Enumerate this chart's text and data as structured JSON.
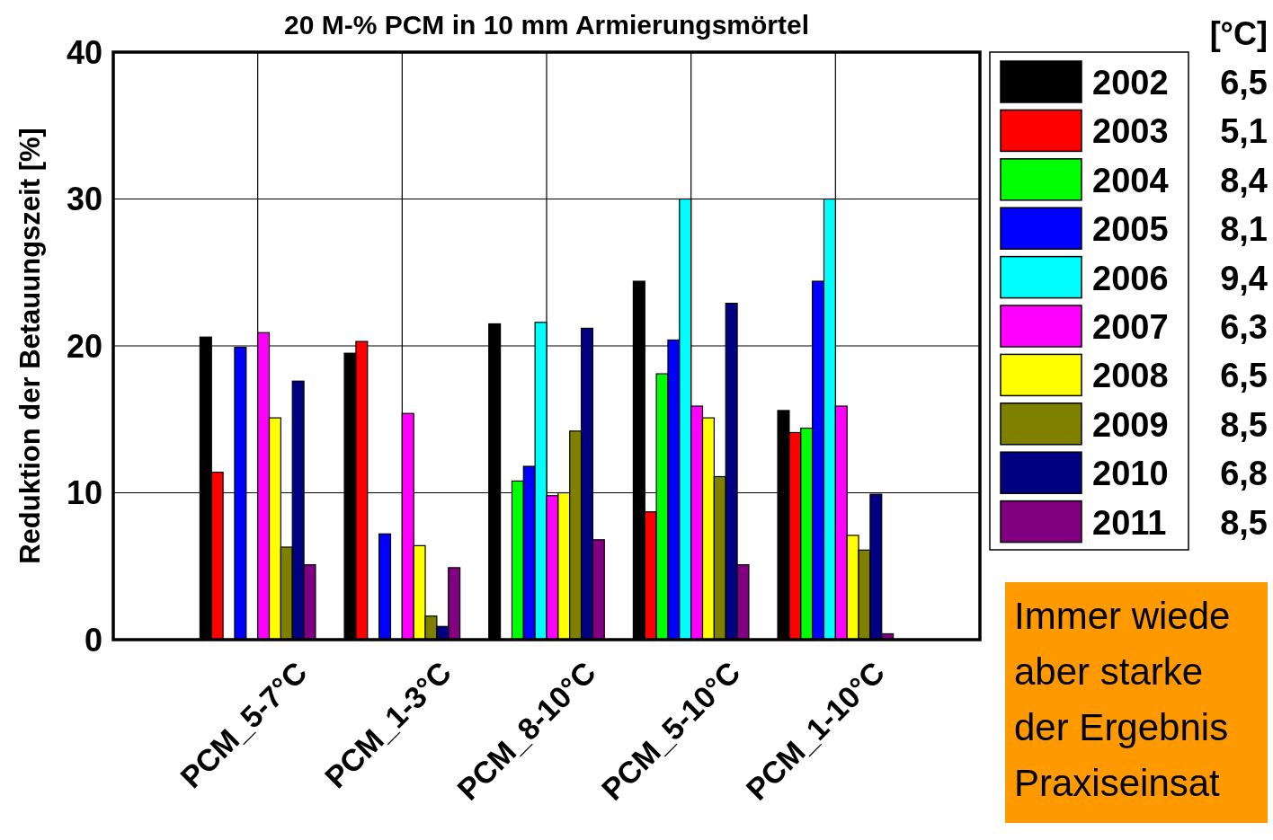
{
  "chart_data": {
    "type": "bar",
    "title": "20 M-% PCM in 10 mm Armierungsmörtel",
    "ylabel": "Reduktion der Betauungszeit [%]",
    "categories": [
      "PCM_5-7°C",
      "PCM_1-3°C",
      "PCM_8-10°C",
      "PCM_5-10°C",
      "PCM_1-10°C"
    ],
    "series": [
      {
        "name": "2002",
        "color": "#000000",
        "values": [
          20.6,
          19.5,
          21.5,
          24.4,
          15.6
        ]
      },
      {
        "name": "2003",
        "color": "#ff0000",
        "values": [
          11.4,
          20.3,
          null,
          8.7,
          14.1
        ]
      },
      {
        "name": "2004",
        "color": "#00ff00",
        "values": [
          null,
          null,
          10.8,
          18.1,
          14.4
        ]
      },
      {
        "name": "2005",
        "color": "#0000ff",
        "values": [
          19.9,
          7.2,
          11.8,
          20.4,
          24.4
        ]
      },
      {
        "name": "2006",
        "color": "#00ffff",
        "values": [
          null,
          null,
          21.6,
          30,
          30
        ]
      },
      {
        "name": "2007",
        "color": "#ff00ff",
        "values": [
          20.9,
          15.4,
          9.8,
          15.9,
          15.9
        ]
      },
      {
        "name": "2008",
        "color": "#ffff00",
        "values": [
          15.1,
          6.4,
          10.0,
          15.1,
          7.1
        ]
      },
      {
        "name": "2009",
        "color": "#808000",
        "values": [
          6.3,
          1.6,
          14.2,
          11.1,
          6.1
        ]
      },
      {
        "name": "2010",
        "color": "#000080",
        "values": [
          17.6,
          0.9,
          21.2,
          22.9,
          9.9
        ]
      },
      {
        "name": "2011",
        "color": "#800080",
        "values": [
          5.1,
          4.9,
          6.8,
          5.1,
          0.4
        ]
      }
    ],
    "ylim": [
      0,
      40
    ],
    "yticks": [
      0,
      10,
      20,
      30,
      40
    ],
    "grid": true,
    "legend": "right",
    "annotations": [
      "[°C]",
      "6,5",
      "5,1",
      "8,4",
      "8,1",
      "9,4",
      "6,3",
      "6,5",
      "8,5",
      "6,8",
      "8,5",
      "Immer wiede\naber starke\nder Ergebnis\nPraxiseinsat"
    ]
  }
}
